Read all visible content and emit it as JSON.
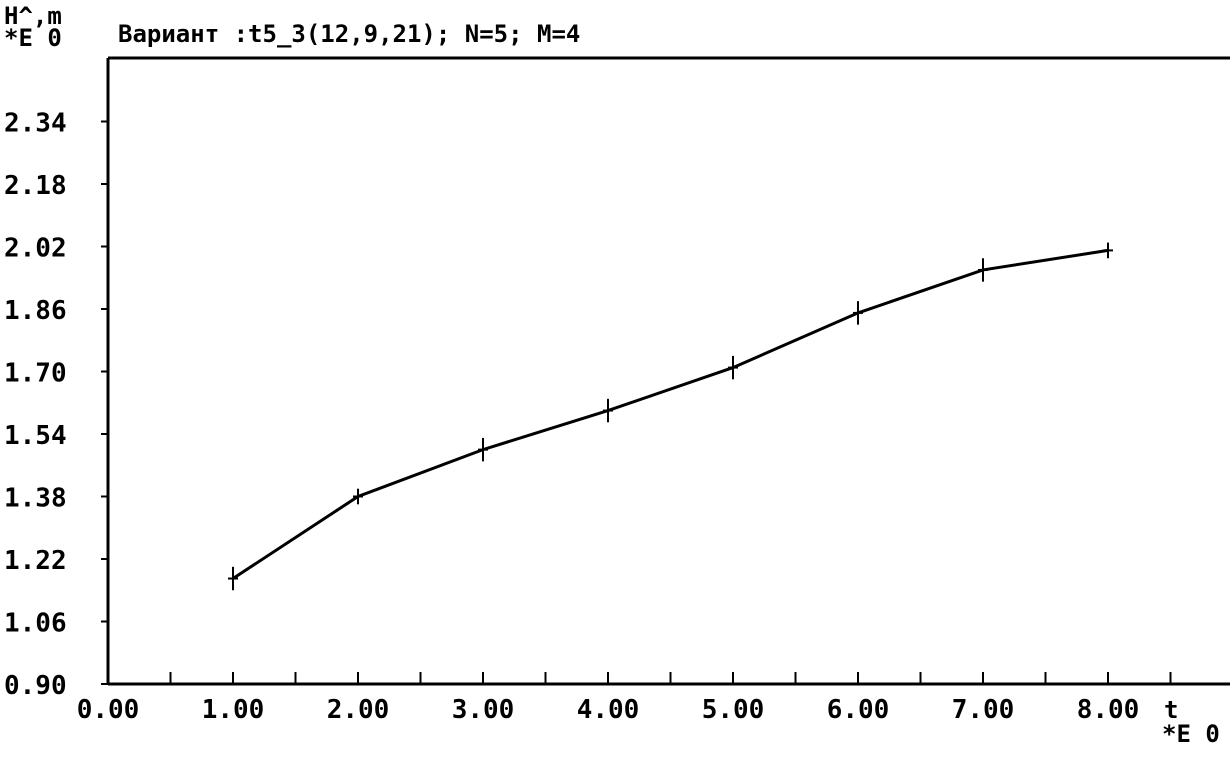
{
  "header": {
    "ylabel": "H^,m",
    "yscale": "*E 0",
    "title": "Вариант :t5_3(12,9,21);  N=5; M=4"
  },
  "chart_data": {
    "type": "line",
    "title": "Вариант :t5_3(12,9,21);  N=5; M=4",
    "xlabel": "t",
    "xscale": "*E 0",
    "ylabel": "H^,m",
    "yscale": "*E 0",
    "xlim": [
      0,
      9.0
    ],
    "ylim": [
      0.9,
      2.5
    ],
    "x_ticks": [
      "0.00",
      "1.00",
      "2.00",
      "3.00",
      "4.00",
      "5.00",
      "6.00",
      "7.00",
      "8.00"
    ],
    "y_ticks": [
      "0.90",
      "1.06",
      "1.22",
      "1.38",
      "1.54",
      "1.70",
      "1.86",
      "2.02",
      "2.18",
      "2.34"
    ],
    "grid": false,
    "series": [
      {
        "x": [
          1,
          2,
          3,
          4,
          5,
          6,
          7,
          8
        ],
        "values": [
          1.17,
          1.38,
          1.5,
          1.6,
          1.71,
          1.85,
          1.96,
          2.01
        ],
        "errors": [
          0.03,
          0.02,
          0.03,
          0.03,
          0.03,
          0.03,
          0.03,
          0.02
        ]
      }
    ]
  }
}
